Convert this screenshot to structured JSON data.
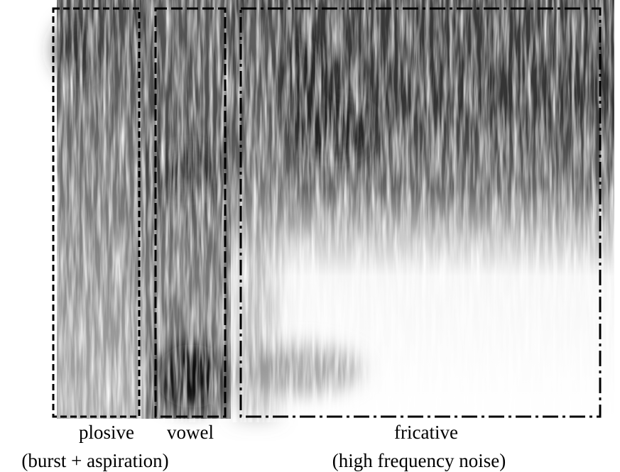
{
  "regions": [
    {
      "label": "plosive",
      "sublabel": "(burst + aspiration)"
    },
    {
      "label": "vowel"
    },
    {
      "label": "fricative",
      "sublabel": "(high frequency noise)"
    }
  ]
}
